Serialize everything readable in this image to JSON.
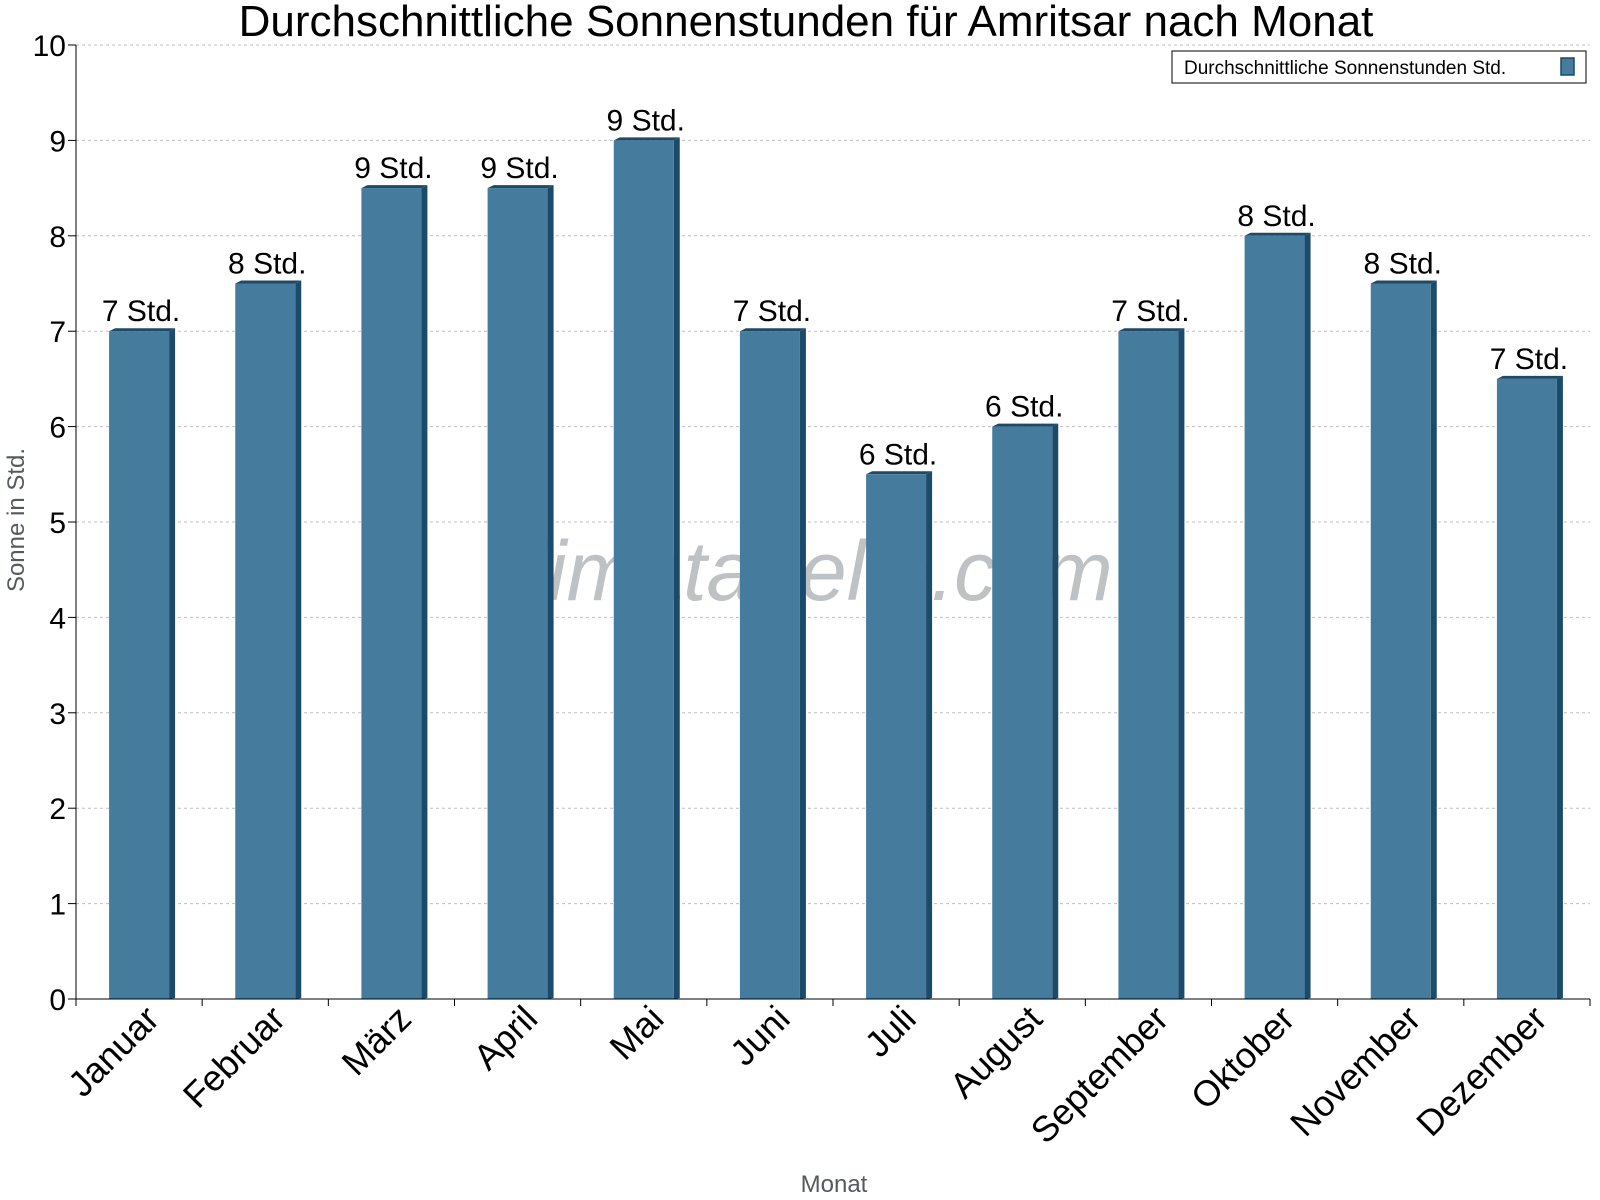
{
  "chart_data": {
    "type": "bar",
    "title": "Durchschnittliche Sonnenstunden für Amritsar nach Monat",
    "xlabel": "Monat",
    "ylabel": "Sonne in Std.",
    "ylim": [
      0,
      10
    ],
    "yticks": [
      0,
      1,
      2,
      3,
      4,
      5,
      6,
      7,
      8,
      9,
      10
    ],
    "grid": true,
    "legend_position": "top-right",
    "categories": [
      "Januar",
      "Februar",
      "März",
      "April",
      "Mai",
      "Juni",
      "Juli",
      "August",
      "September",
      "Oktober",
      "November",
      "Dezember"
    ],
    "series": [
      {
        "name": "Durchschnittliche Sonnenstunden Std.",
        "values": [
          7,
          7.5,
          8.5,
          8.5,
          9,
          7,
          5.5,
          6,
          7,
          8,
          7.5,
          6.5
        ],
        "labels": [
          "7 Std.",
          "8 Std.",
          "9 Std.",
          "9 Std.",
          "9 Std.",
          "7 Std.",
          "6 Std.",
          "6 Std.",
          "7 Std.",
          "8 Std.",
          "8 Std.",
          "7 Std."
        ],
        "color": "#457b9d",
        "edge_color": "#1b4a6b"
      }
    ],
    "watermark": "klimatabelle.com"
  }
}
